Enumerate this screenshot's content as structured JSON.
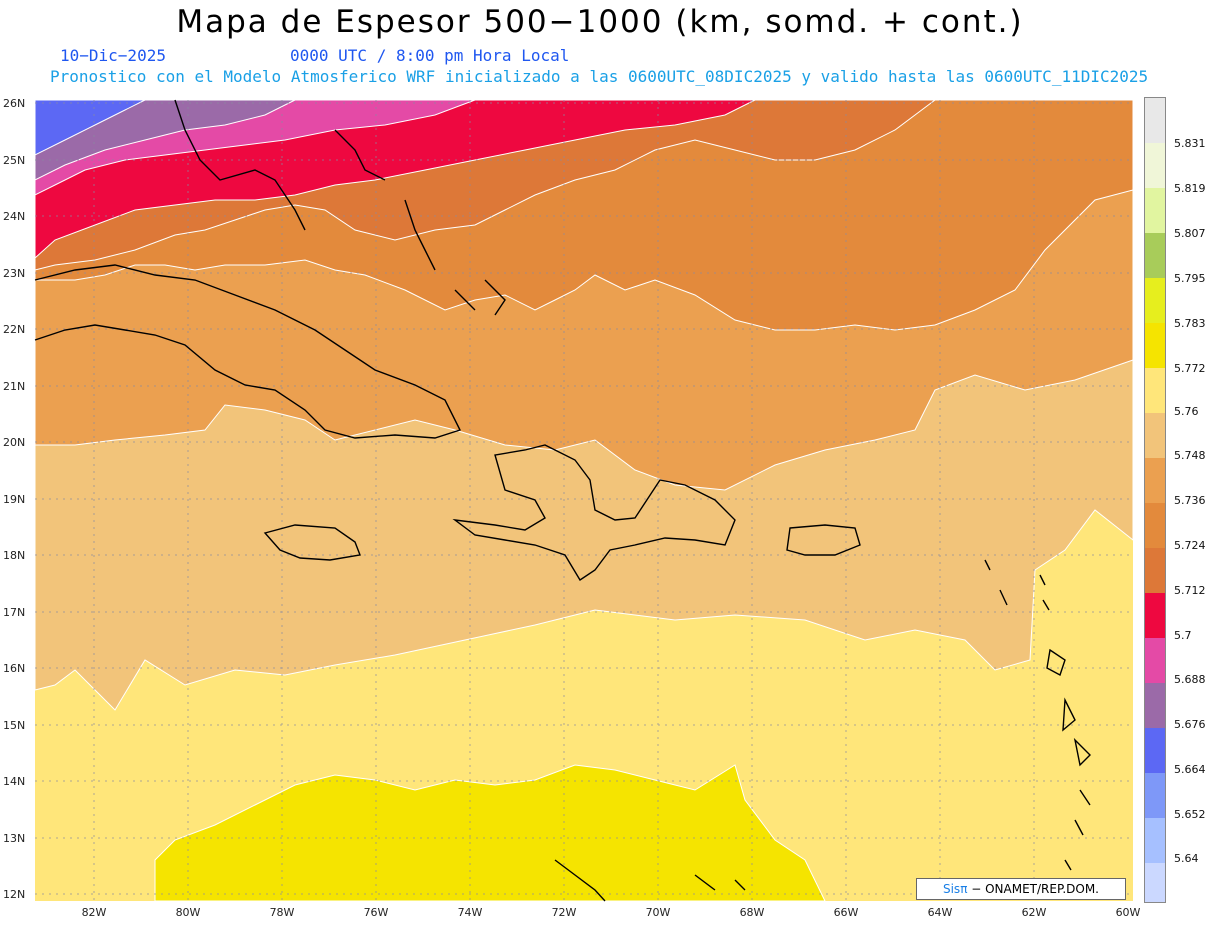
{
  "title": "Mapa de Espesor 500−1000 (km, somd. + cont.)",
  "date_label": "10−Dic−2025",
  "utc_label": "0000 UTC / 8:00 pm Hora Local",
  "description": "Pronostico con el Modelo Atmosferico WRF inicializado a las 0600UTC_08DIC2025 y valido hasta las  0600UTC_11DIC2025",
  "lat_labels": [
    "26N",
    "25N",
    "24N",
    "23N",
    "22N",
    "21N",
    "20N",
    "19N",
    "18N",
    "17N",
    "16N",
    "15N",
    "14N",
    "13N",
    "12N"
  ],
  "lon_labels": [
    "82W",
    "80W",
    "78W",
    "76W",
    "74W",
    "72W",
    "70W",
    "68W",
    "66W",
    "64W",
    "62W",
    "60W"
  ],
  "colorbar": {
    "labels": [
      "5.831",
      "5.819",
      "5.807",
      "5.795",
      "5.783",
      "5.772",
      "5.76",
      "5.748",
      "5.736",
      "5.724",
      "5.712",
      "5.7",
      "5.688",
      "5.676",
      "5.664",
      "5.652",
      "5.64"
    ],
    "colors": [
      "#e8e8e8",
      "#f0f6d8",
      "#e1f5a0",
      "#a8cc5a",
      "#e6ee1e",
      "#f5e400",
      "#ffe67a",
      "#f2c47a",
      "#eba050",
      "#e38a3c",
      "#dd7838",
      "#ee0840",
      "#e44aa6",
      "#9b6aa8",
      "#5c68f4",
      "#7e98f8",
      "#a6c0ff",
      "#cbd8ff"
    ]
  },
  "regions": {
    "color_5700": "#ee0840",
    "color_5712": "#dd7838",
    "color_5724": "#e38a3c",
    "color_5736": "#eba050",
    "color_5748": "#f2c47a",
    "color_5760": "#ffe67a",
    "color_5772": "#f5e400"
  },
  "footer": {
    "logo": "Sisπ",
    "text": " − ONAMET/REP.DOM."
  }
}
